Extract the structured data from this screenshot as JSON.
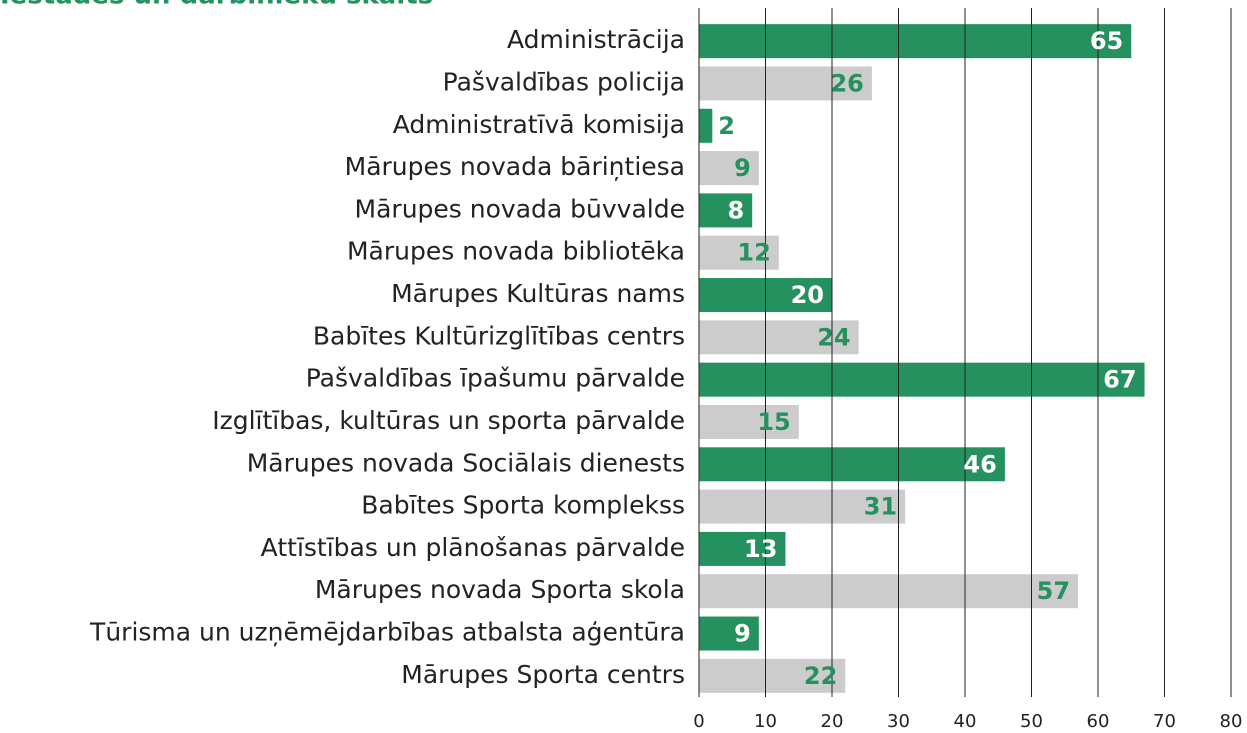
{
  "chart_data": {
    "type": "bar",
    "orientation": "horizontal",
    "title": "Iestādes un darbinieku skaits",
    "categories": [
      "Administrācija",
      "Pašvaldības policija",
      "Administratīvā komisija",
      "Mārupes novada bāriņtiesa",
      "Mārupes novada būvvalde",
      "Mārupes novada bibliotēka",
      "Mārupes Kultūras nams",
      "Babītes Kultūrizglītības centrs",
      "Pašvaldības īpašumu pārvalde",
      "Izglītības, kultūras un sporta pārvalde",
      "Mārupes novada Sociālais dienests",
      "Babītes Sporta komplekss",
      "Attīstības un plānošanas pārvalde",
      "Mārupes novada Sporta skola",
      "Tūrisma un uzņēmējdarbības atbalsta aģentūra",
      "Mārupes Sporta centrs"
    ],
    "values": [
      65,
      26,
      2,
      9,
      8,
      12,
      20,
      24,
      67,
      15,
      46,
      31,
      13,
      57,
      9,
      22
    ],
    "colors": [
      "#24915e",
      "#cccccc"
    ],
    "label_colors": [
      "#ffffff",
      "#24915e"
    ],
    "xlim": [
      0,
      80
    ],
    "xticks": [
      0,
      10,
      20,
      30,
      40,
      50,
      60,
      70,
      80
    ],
    "grid": true
  }
}
